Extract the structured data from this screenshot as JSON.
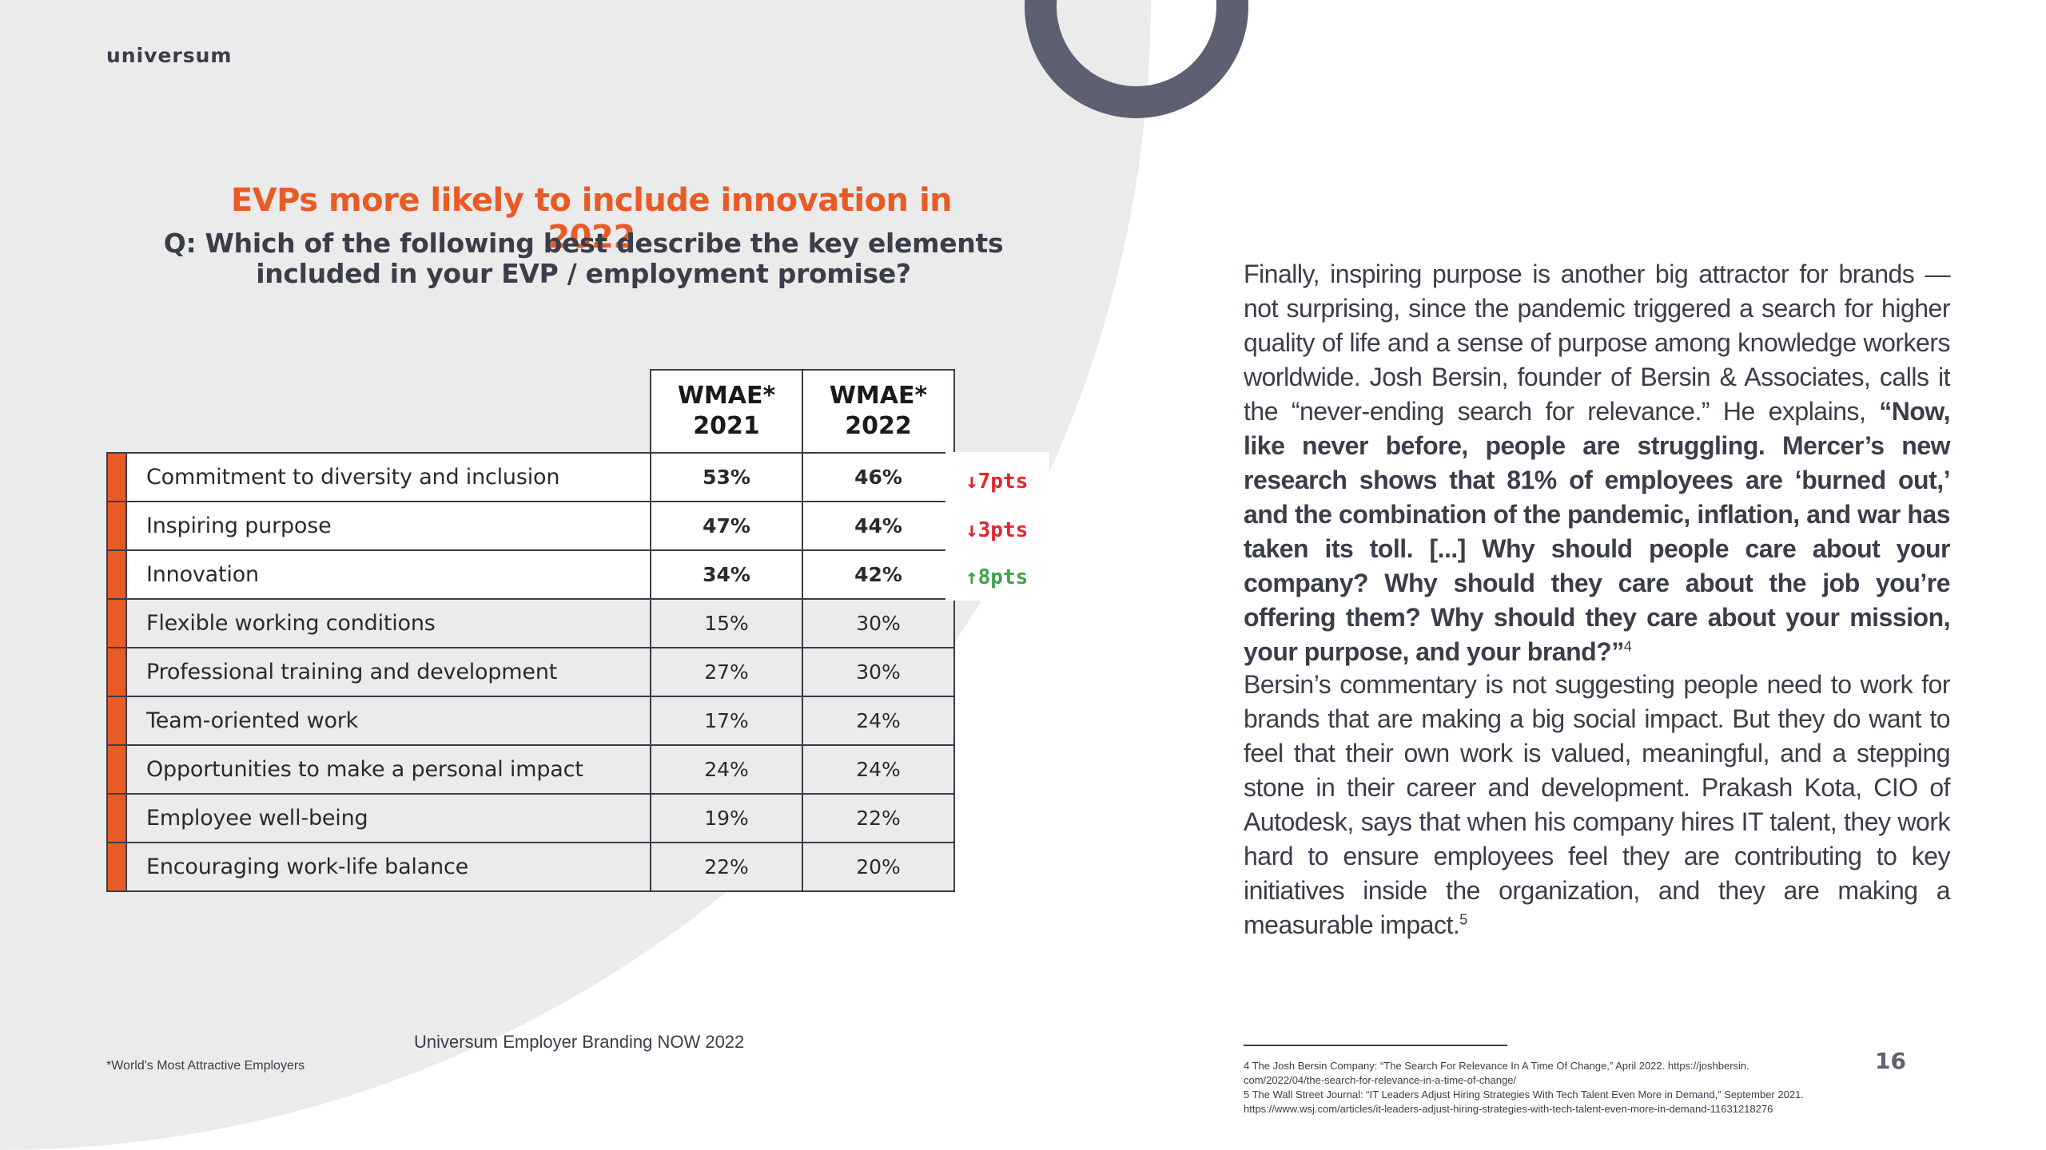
{
  "brand": {
    "logo_text": "universum",
    "accent": "#e85b25",
    "dark": "#3a3d4a"
  },
  "chart": {
    "headline": "EVPs more likely to include innovation in 2022",
    "question": "Q: Which of the following best describe the key elements included in your EVP / employment promise?",
    "columns": [
      "WMAE* 2021",
      "WMAE* 2022"
    ],
    "rows": [
      {
        "label": "Commitment to diversity and inclusion",
        "v2021": "53%",
        "v2022": "46%"
      },
      {
        "label": "Inspiring purpose",
        "v2021": "47%",
        "v2022": "44%"
      },
      {
        "label": "Innovation",
        "v2021": "34%",
        "v2022": "42%"
      },
      {
        "label": "Flexible working conditions",
        "v2021": "15%",
        "v2022": "30%"
      },
      {
        "label": "Professional training and development",
        "v2021": "27%",
        "v2022": "30%"
      },
      {
        "label": "Team-oriented work",
        "v2021": "17%",
        "v2022": "24%"
      },
      {
        "label": "Opportunities to make a personal impact",
        "v2021": "24%",
        "v2022": "24%"
      },
      {
        "label": "Employee well-being",
        "v2021": "19%",
        "v2022": "22%"
      },
      {
        "label": "Encouraging work-life balance",
        "v2021": "22%",
        "v2022": "20%"
      }
    ],
    "changes": [
      {
        "text": "↓7pts",
        "direction": "down",
        "color": "#e0262b"
      },
      {
        "text": "↓3pts",
        "direction": "down",
        "color": "#e0262b"
      },
      {
        "text": "↑8pts",
        "direction": "up",
        "color": "#3fa34d"
      }
    ],
    "source": "Universum Employer Branding NOW 2022",
    "footnote": "*World's Most Attractive Employers"
  },
  "article": {
    "p1_text": "Finally, inspiring purpose is another big attractor for brands — not surprising, since the pandemic triggered a search for higher quality of life and a sense of purpose among knowledge workers worldwide. Josh Bersin, founder of Bersin & Associates, calls it the “never-ending search for relevance.” He explains, ",
    "p1_quote": "“Now, like never before, people are struggling. Mercer’s new research shows that 81% of employees are ‘burned out,’ and the combination of the pandemic, inflation, and war has taken its toll. [...] Why should people care about your company? Why should they care about the job you’re offering them? Why should they care about your mission, your purpose, and your brand?”",
    "p1_ref": "4",
    "p2_text": "Bersin’s commentary is not suggesting people need to work for brands that are making a big social impact. But they do want to feel that their own work is valued, meaningful, and a stepping stone in their career and development. Prakash Kota, CIO of Autodesk, says that when his company hires IT talent, they work hard to ensure employees feel they are contributing to key initiatives inside the organization, and they are making a measurable impact.",
    "p2_ref": "5",
    "refs": [
      "4 The Josh Bersin Company: “The Search For Relevance In A Time Of Change,” April 2022. https://joshbersin.",
      "com/2022/04/the-search-for-relevance-in-a-time-of-change/",
      "5 The Wall Street Journal: “IT Leaders Adjust Hiring Strategies With Tech Talent Even More in Demand,” September 2021.",
      "https://www.wsj.com/articles/it-leaders-adjust-hiring-strategies-with-tech-talent-even-more-in-demand-11631218276"
    ],
    "page_number": "16"
  }
}
